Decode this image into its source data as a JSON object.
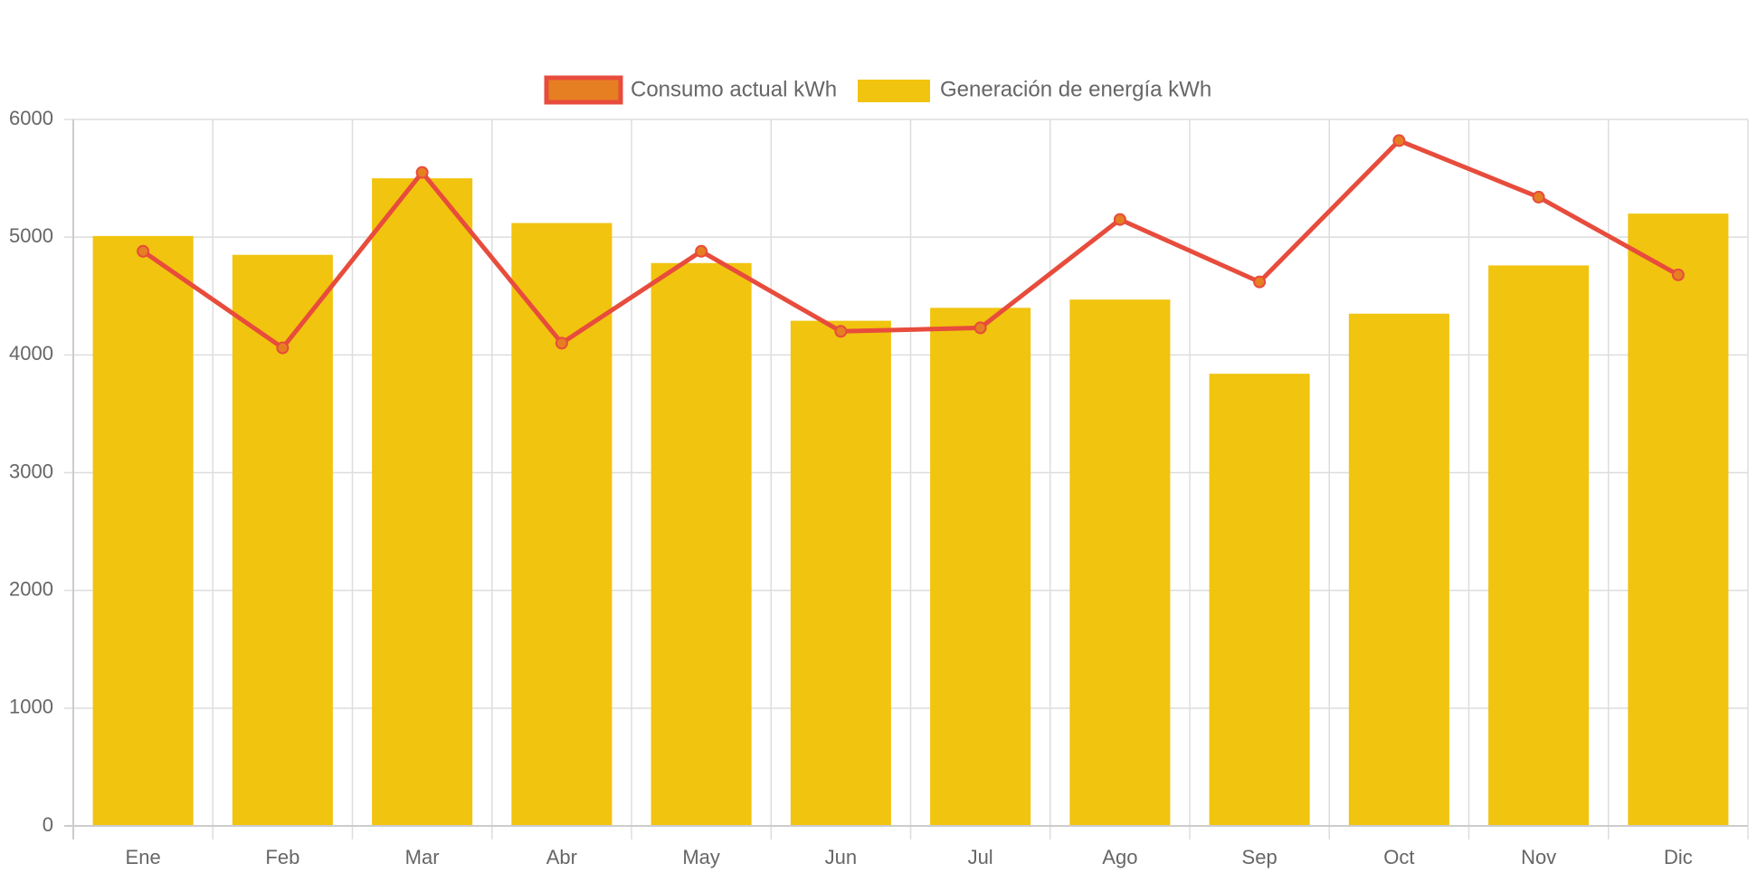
{
  "chart_data": {
    "type": "bar",
    "categories": [
      "Ene",
      "Feb",
      "Mar",
      "Abr",
      "May",
      "Jun",
      "Jul",
      "Ago",
      "Sep",
      "Oct",
      "Nov",
      "Dic"
    ],
    "series": [
      {
        "name": "Consumo actual kWh",
        "type": "line",
        "values": [
          4880,
          4060,
          5550,
          4100,
          4880,
          4200,
          4230,
          5150,
          4620,
          5820,
          5340,
          4680
        ],
        "color": "#e74c3c",
        "point_color": "#e67e22"
      },
      {
        "name": "Generación de energía kWh",
        "type": "bar",
        "values": [
          5010,
          4850,
          5500,
          5120,
          4780,
          4290,
          4400,
          4470,
          3840,
          4350,
          4760,
          5200
        ],
        "color": "#f1c40f"
      }
    ],
    "yticks": [
      "0",
      "1000",
      "2000",
      "3000",
      "4000",
      "5000",
      "6000"
    ],
    "ylim": [
      0,
      6000
    ],
    "grid": true,
    "legend_position": "top"
  }
}
